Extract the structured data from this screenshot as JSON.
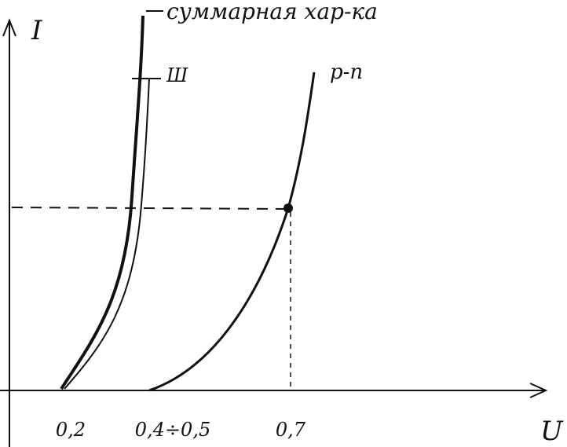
{
  "axes": {
    "y_label": "I",
    "x_label": "U"
  },
  "ticks": [
    "0,2",
    "0,4÷0,5",
    "0,7"
  ],
  "curves": {
    "total": "суммарная хар-ка",
    "schottky": "Ш",
    "pn": "p-n"
  }
}
